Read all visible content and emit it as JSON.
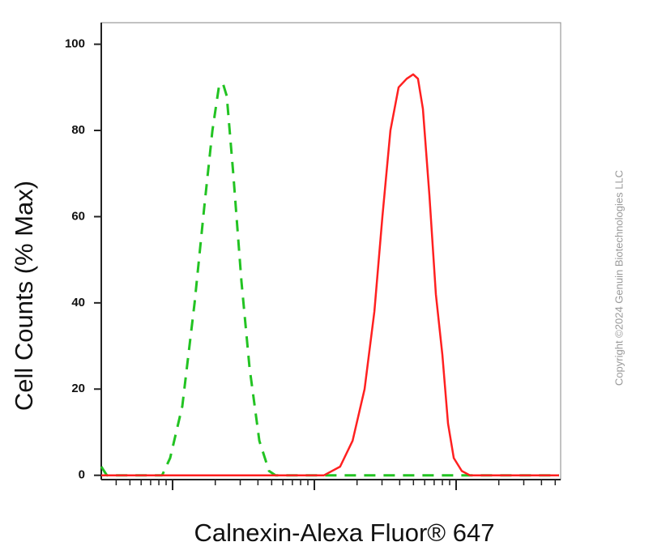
{
  "chart_data": {
    "type": "line",
    "y_label": "Cell Counts (% Max)",
    "x_label": "Calnexin-Alexa Fluor® 647",
    "copyright": "Copyright ©2024 Genuin Biotechnologies LLC",
    "xscale": "log",
    "xlim": [
      3.14,
      5460
    ],
    "ylim": [
      -1,
      105
    ],
    "yticks": [
      0,
      20,
      40,
      60,
      80,
      100
    ],
    "xticks": [
      10,
      100,
      1000
    ],
    "xminorticks": [
      4,
      5,
      6,
      7,
      8,
      9,
      20,
      30,
      40,
      50,
      60,
      70,
      80,
      90,
      200,
      300,
      400,
      500,
      600,
      700,
      800,
      900,
      2000,
      3000,
      4000,
      5000
    ],
    "series": [
      {
        "color": "#22c322",
        "dash": true,
        "x": [
          3.14,
          3.44,
          8.43,
          9.61,
          11.7,
          14.3,
          16.7,
          19.1,
          21.2,
          22.6,
          24.1,
          26.8,
          30.6,
          34.9,
          40.9,
          47.9,
          53.2,
          5320
        ],
        "values": [
          2,
          0,
          0,
          4,
          16,
          40,
          62,
          80,
          90,
          91,
          88,
          70,
          45,
          25,
          8,
          1,
          0,
          0
        ]
      },
      {
        "color": "#ff2020",
        "dash": false,
        "x": [
          3.14,
          117,
          152,
          186,
          226,
          265,
          302,
          344,
          393,
          448,
          498,
          538,
          583,
          648,
          720,
          800,
          877,
          962,
          1096,
          1250,
          5320
        ],
        "values": [
          0,
          0,
          2,
          8,
          20,
          38,
          60,
          80,
          90,
          92,
          93,
          92,
          85,
          65,
          42,
          28,
          12,
          4,
          1,
          0,
          0
        ]
      }
    ]
  }
}
